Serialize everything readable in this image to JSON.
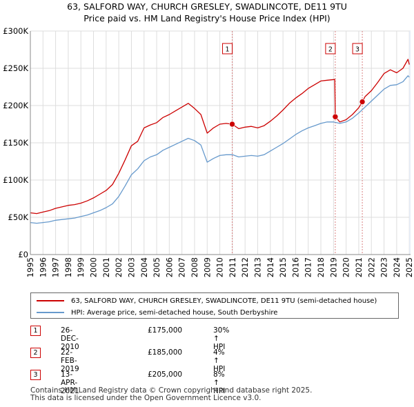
{
  "title_line1": "63, SALFORD WAY, CHURCH GRESLEY, SWADLINCOTE, DE11 9TU",
  "title_line2": "Price paid vs. HM Land Registry's House Price Index (HPI)",
  "colors": {
    "property": "#cc0000",
    "hpi": "#6699cc",
    "sale_marker": "#cc0000",
    "shade": "#e8eef8"
  },
  "legend": {
    "property_label": "63, SALFORD WAY, CHURCH GRESLEY, SWADLINCOTE, DE11 9TU (semi-detached house)",
    "hpi_label": "HPI: Average price, semi-detached house, South Derbyshire"
  },
  "sales": [
    {
      "num": "1",
      "date": "26-DEC-2010",
      "price": "£175,000",
      "hpi_change": "30% ↑ HPI"
    },
    {
      "num": "2",
      "date": "22-FEB-2019",
      "price": "£185,000",
      "hpi_change": "4% ↑ HPI"
    },
    {
      "num": "3",
      "date": "13-APR-2021",
      "price": "£205,000",
      "hpi_change": "8% ↑ HPI"
    }
  ],
  "footer_line1": "Contains HM Land Registry data © Crown copyright and database right 2025.",
  "footer_line2": "This data is licensed under the Open Government Licence v3.0.",
  "chart_data": {
    "type": "line",
    "title": "Price paid vs. HM Land Registry's House Price Index (HPI)",
    "xlabel": "",
    "ylabel": "",
    "xlim": [
      1995,
      2025.1
    ],
    "ylim": [
      0,
      300000
    ],
    "y_ticks": [
      0,
      50000,
      100000,
      150000,
      200000,
      250000,
      300000
    ],
    "y_tick_labels": [
      "£0",
      "£50K",
      "£100K",
      "£150K",
      "£200K",
      "£250K",
      "£300K"
    ],
    "x_ticks": [
      1995,
      1996,
      1997,
      1998,
      1999,
      2000,
      2001,
      2002,
      2003,
      2004,
      2005,
      2006,
      2007,
      2008,
      2009,
      2010,
      2011,
      2012,
      2013,
      2014,
      2015,
      2016,
      2017,
      2018,
      2019,
      2020,
      2021,
      2022,
      2023,
      2024,
      2025
    ],
    "grid": true,
    "shaded_region": [
      2025.0,
      2025.1
    ],
    "sale_markers": [
      {
        "label": "1",
        "x": 2010.98,
        "y": 175000
      },
      {
        "label": "2",
        "x": 2019.14,
        "y": 185000
      },
      {
        "label": "3",
        "x": 2021.28,
        "y": 205000
      }
    ],
    "series": [
      {
        "name": "63, SALFORD WAY, CHURCH GRESLEY, SWADLINCOTE, DE11 9TU (semi-detached house)",
        "x": [
          1995,
          1995.5,
          1996,
          1996.5,
          1997,
          1997.5,
          1998,
          1998.5,
          1999,
          1999.5,
          2000,
          2000.5,
          2001,
          2001.5,
          2002,
          2002.5,
          2003,
          2003.5,
          2004,
          2004.5,
          2005,
          2005.5,
          2006,
          2006.5,
          2007,
          2007.5,
          2008,
          2008.5,
          2009,
          2009.5,
          2010,
          2010.5,
          2010.98,
          2011.5,
          2012,
          2012.5,
          2013,
          2013.5,
          2014,
          2014.5,
          2015,
          2015.5,
          2016,
          2016.5,
          2017,
          2017.5,
          2018,
          2018.5,
          2019.1,
          2019.14,
          2019.5,
          2020,
          2020.5,
          2021,
          2021.28,
          2021.5,
          2022,
          2022.5,
          2023,
          2023.5,
          2024,
          2024.5,
          2024.9,
          2025.0
        ],
        "y": [
          56000,
          55000,
          57000,
          59000,
          62000,
          64000,
          66000,
          67000,
          69000,
          72000,
          76000,
          81000,
          86000,
          94000,
          109000,
          127000,
          146000,
          152000,
          170000,
          174000,
          177000,
          184000,
          188000,
          193000,
          198000,
          203000,
          196000,
          188000,
          163000,
          170000,
          175000,
          176000,
          175000,
          169000,
          171000,
          172000,
          170000,
          173000,
          179000,
          186000,
          194000,
          203000,
          210000,
          216000,
          223000,
          228000,
          233000,
          234000,
          235000,
          185000,
          178000,
          181000,
          188000,
          197000,
          205000,
          212000,
          220000,
          231000,
          243000,
          248000,
          244000,
          250000,
          262000,
          255000
        ]
      },
      {
        "name": "HPI: Average price, semi-detached house, South Derbyshire",
        "x": [
          1995,
          1995.5,
          1996,
          1996.5,
          1997,
          1997.5,
          1998,
          1998.5,
          1999,
          1999.5,
          2000,
          2000.5,
          2001,
          2001.5,
          2002,
          2002.5,
          2003,
          2003.5,
          2004,
          2004.5,
          2005,
          2005.5,
          2006,
          2006.5,
          2007,
          2007.5,
          2008,
          2008.5,
          2009,
          2009.5,
          2010,
          2010.5,
          2011,
          2011.5,
          2012,
          2012.5,
          2013,
          2013.5,
          2014,
          2014.5,
          2015,
          2015.5,
          2016,
          2016.5,
          2017,
          2017.5,
          2018,
          2018.5,
          2019,
          2019.5,
          2020,
          2020.5,
          2021,
          2021.5,
          2022,
          2022.5,
          2023,
          2023.5,
          2024,
          2024.5,
          2024.9,
          2025.0
        ],
        "y": [
          43000,
          42000,
          43000,
          44000,
          46000,
          47000,
          48000,
          49000,
          51000,
          53000,
          56000,
          59000,
          63000,
          68000,
          78000,
          92000,
          107000,
          115000,
          126000,
          131000,
          134000,
          140000,
          144000,
          148000,
          152000,
          156000,
          153000,
          147000,
          124000,
          129000,
          133000,
          134000,
          134000,
          131000,
          132000,
          133000,
          132000,
          134000,
          139000,
          144000,
          149000,
          155000,
          161000,
          166000,
          170000,
          173000,
          176000,
          178000,
          178000,
          176000,
          178000,
          183000,
          190000,
          198000,
          206000,
          214000,
          222000,
          227000,
          228000,
          232000,
          240000,
          238000
        ]
      }
    ]
  }
}
